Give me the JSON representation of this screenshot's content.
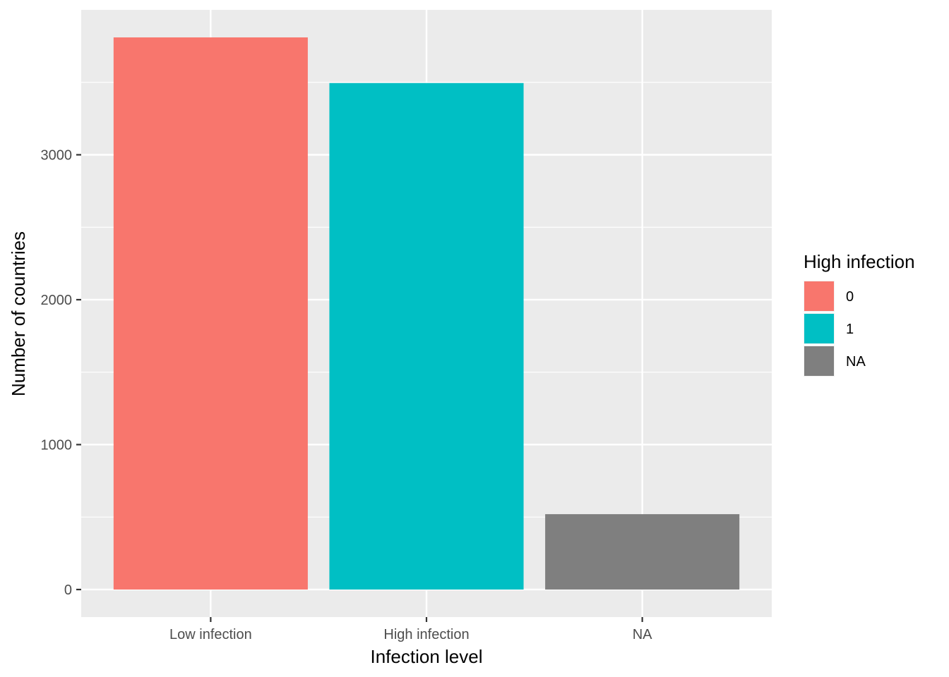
{
  "chart_data": {
    "type": "bar",
    "categories": [
      "Low infection",
      "High infection",
      "NA"
    ],
    "values": [
      3810,
      3495,
      520
    ],
    "fill_groups": [
      "0",
      "1",
      "NA"
    ],
    "colors": [
      "#F8766D",
      "#00BFC4",
      "#7F7F7F"
    ],
    "xlabel": "Infection level",
    "ylabel": "Number of countries",
    "ylim": [
      -190,
      4000
    ],
    "yticks": [
      0,
      1000,
      2000,
      3000
    ],
    "grid": true,
    "panel_background": "#EBEBEB",
    "legend": {
      "title": "High infection",
      "position": "right",
      "entries": [
        {
          "label": "0",
          "color": "#F8766D"
        },
        {
          "label": "1",
          "color": "#00BFC4"
        },
        {
          "label": "NA",
          "color": "#7F7F7F"
        }
      ]
    }
  }
}
